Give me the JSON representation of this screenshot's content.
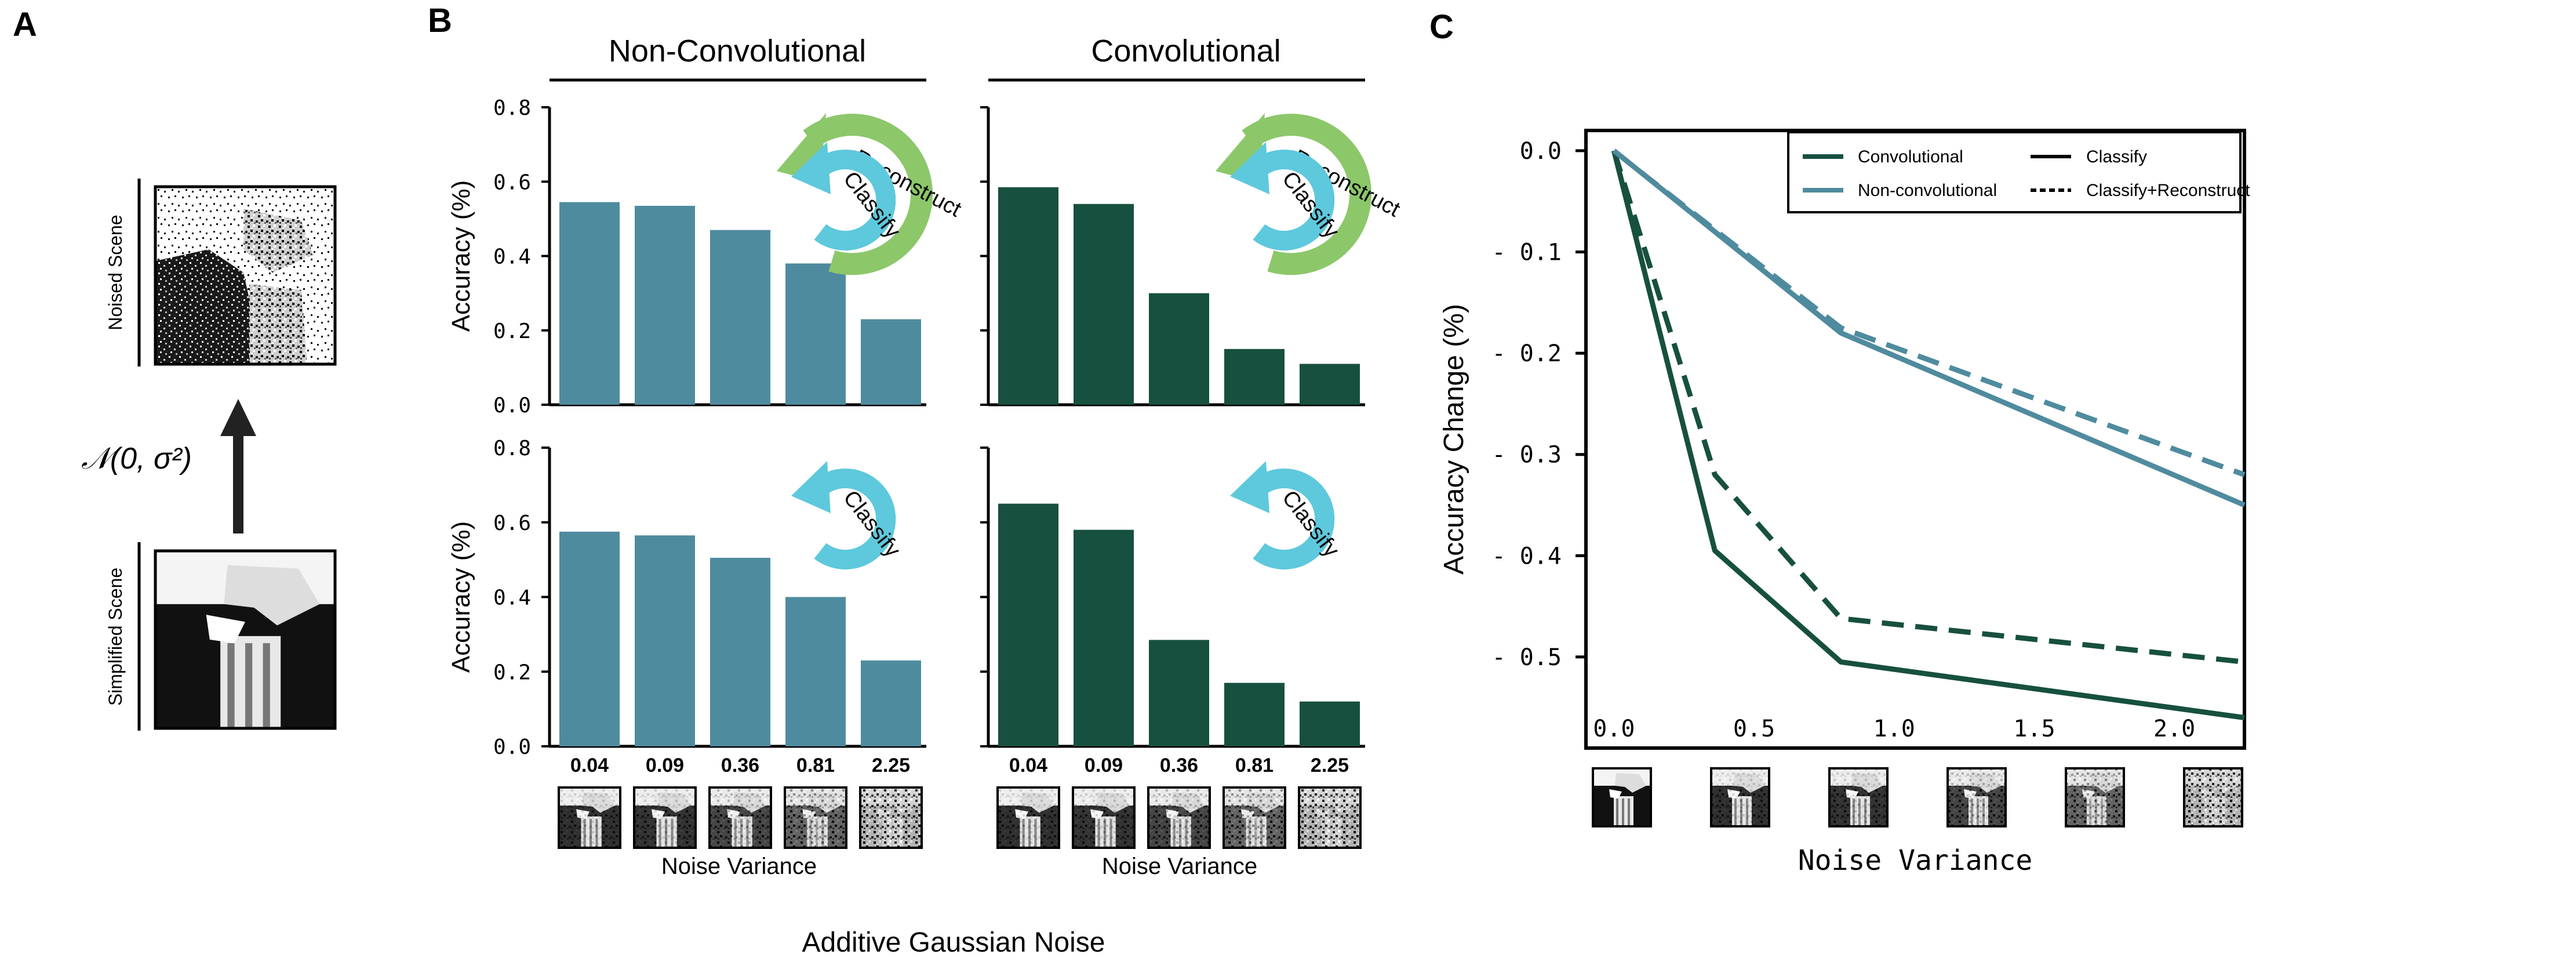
{
  "colors": {
    "nonconv": "#4f8b9e",
    "conv": "#17503f",
    "arrow_teal": "#5ec8dc",
    "arrow_green": "#8cc76a",
    "black": "#000000"
  },
  "panels": {
    "a": {
      "letter": "A",
      "noised_label": "Noised Scene",
      "simplified_label": "Simplified Scene",
      "noise_formula": "𝒩(0, σ²)"
    },
    "b": {
      "letter": "B",
      "header_nonconv": "Non-Convolutional",
      "header_conv": "Convolutional",
      "xlabel": "Noise Variance",
      "footer": "Additive Gaussian Noise",
      "arrow_labels": {
        "reconstruct": "Reconstruct",
        "classify": "Classify"
      }
    },
    "c": {
      "letter": "C"
    }
  },
  "chart_data": [
    {
      "id": "b-top-nonconv",
      "type": "bar",
      "categories": [
        "0.04",
        "0.09",
        "0.36",
        "0.81",
        "2.25"
      ],
      "values": [
        0.545,
        0.535,
        0.47,
        0.38,
        0.23
      ],
      "ylabel": "Accuracy (%)",
      "ylim": [
        0,
        0.8
      ],
      "yticks": [
        "0.0",
        "0.2",
        "0.4",
        "0.6",
        "0.8"
      ],
      "color": "#4f8b9e",
      "arrow": "classify+reconstruct"
    },
    {
      "id": "b-top-conv",
      "type": "bar",
      "categories": [
        "0.04",
        "0.09",
        "0.36",
        "0.81",
        "2.25"
      ],
      "values": [
        0.585,
        0.54,
        0.3,
        0.15,
        0.11
      ],
      "ylim": [
        0,
        0.8
      ],
      "color": "#17503f",
      "arrow": "classify+reconstruct"
    },
    {
      "id": "b-bottom-nonconv",
      "type": "bar",
      "categories": [
        "0.04",
        "0.09",
        "0.36",
        "0.81",
        "2.25"
      ],
      "values": [
        0.575,
        0.565,
        0.505,
        0.4,
        0.23
      ],
      "ylabel": "Accuracy (%)",
      "ylim": [
        0,
        0.8
      ],
      "yticks": [
        "0.0",
        "0.2",
        "0.4",
        "0.6",
        "0.8"
      ],
      "color": "#4f8b9e",
      "arrow": "classify"
    },
    {
      "id": "b-bottom-conv",
      "type": "bar",
      "categories": [
        "0.04",
        "0.09",
        "0.36",
        "0.81",
        "2.25"
      ],
      "values": [
        0.65,
        0.58,
        0.285,
        0.17,
        0.12
      ],
      "ylim": [
        0,
        0.8
      ],
      "color": "#17503f",
      "arrow": "classify"
    },
    {
      "id": "c-line",
      "type": "line",
      "xlabel": "Noise Variance",
      "ylabel": "Accuracy Change  (%)",
      "xlim": [
        -0.1,
        2.25
      ],
      "ylim": [
        -0.59,
        0.02
      ],
      "xticks": [
        "0.0",
        "0.5",
        "1.0",
        "1.5",
        "2.0"
      ],
      "yticks": [
        "0.0",
        "- 0.1",
        "- 0.2",
        "- 0.3",
        "- 0.4",
        "- 0.5"
      ],
      "legend": {
        "placement": "top-right",
        "items": [
          "Convolutional",
          "Non-convolutional",
          "Classify",
          "Classify+Reconstruct"
        ]
      },
      "series": [
        {
          "name": "Convolutional",
          "style": "Classify",
          "color": "#17503f",
          "x": [
            0.0,
            0.36,
            0.81,
            2.25
          ],
          "y": [
            0.0,
            -0.395,
            -0.505,
            -0.56
          ]
        },
        {
          "name": "Convolutional",
          "style": "Classify+Reconstruct",
          "color": "#17503f",
          "x": [
            0.0,
            0.36,
            0.81,
            2.25
          ],
          "y": [
            0.0,
            -0.32,
            -0.462,
            -0.505
          ]
        },
        {
          "name": "Non-convolutional",
          "style": "Classify",
          "color": "#4f8b9e",
          "x": [
            0.0,
            0.09,
            0.81,
            2.25
          ],
          "y": [
            0.0,
            -0.02,
            -0.18,
            -0.35
          ]
        },
        {
          "name": "Non-convolutional",
          "style": "Classify+Reconstruct",
          "color": "#4f8b9e",
          "x": [
            0.0,
            0.09,
            0.81,
            2.25
          ],
          "y": [
            0.0,
            -0.02,
            -0.175,
            -0.32
          ]
        }
      ],
      "thumbnail_noise_levels": [
        0.0,
        0.04,
        0.09,
        0.36,
        0.81,
        2.25
      ]
    }
  ]
}
